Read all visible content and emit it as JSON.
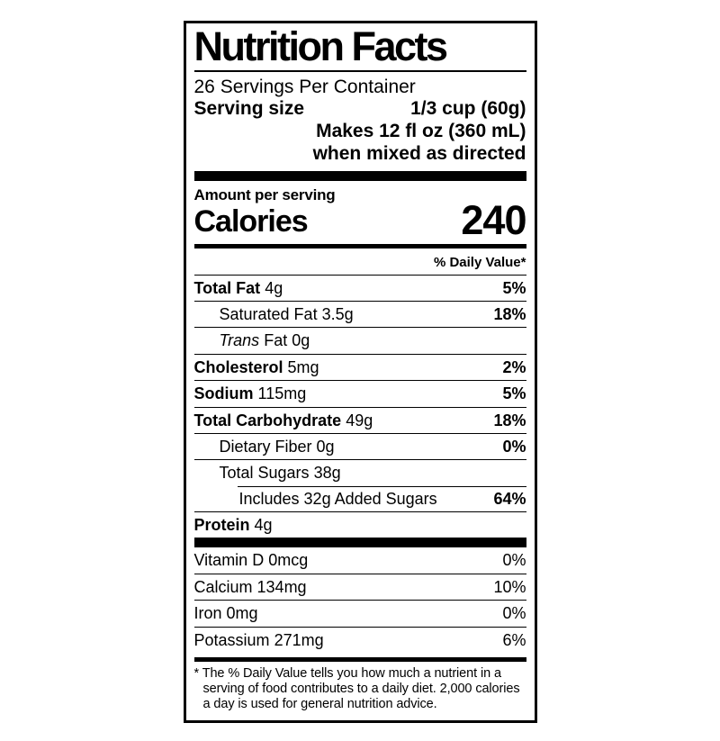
{
  "label": {
    "title": "Nutrition Facts",
    "servings_per_container": "26 Servings Per Container",
    "serving_size_label": "Serving size",
    "serving_size_value": "1/3 cup (60g)",
    "serving_note_line1": "Makes 12 fl oz (360 mL)",
    "serving_note_line2": "when mixed as directed",
    "amount_per_serving": "Amount per serving",
    "calories_label": "Calories",
    "calories_value": "240",
    "daily_value_header": "% Daily Value*",
    "nutrients": [
      {
        "name": "Total Fat",
        "amount": "4g",
        "dv": "5%"
      },
      {
        "name": "Saturated Fat",
        "amount": "3.5g",
        "dv": "18%"
      },
      {
        "name_italic": "Trans",
        "name": "Fat",
        "amount": "0g",
        "dv": ""
      },
      {
        "name": "Cholesterol",
        "amount": "5mg",
        "dv": "2%"
      },
      {
        "name": "Sodium",
        "amount": "115mg",
        "dv": "5%"
      },
      {
        "name": "Total Carbohydrate",
        "amount": "49g",
        "dv": "18%"
      },
      {
        "name": "Dietary Fiber",
        "amount": "0g",
        "dv": "0%"
      },
      {
        "name": "Total Sugars",
        "amount": "38g",
        "dv": ""
      },
      {
        "name": "Includes 32g Added Sugars",
        "amount": "",
        "dv": "64%"
      },
      {
        "name": "Protein",
        "amount": "4g",
        "dv": ""
      }
    ],
    "vitamins": [
      {
        "name": "Vitamin D",
        "amount": "0mcg",
        "dv": "0%"
      },
      {
        "name": "Calcium",
        "amount": "134mg",
        "dv": "10%"
      },
      {
        "name": "Iron",
        "amount": "0mg",
        "dv": "0%"
      },
      {
        "name": "Potassium",
        "amount": "271mg",
        "dv": "6%"
      }
    ],
    "footnote": "* The % Daily Value tells you how much a nutrient in a serving of food contributes to a daily diet. 2,000 calories a day is used for general nutrition advice."
  },
  "colors": {
    "ink": "#000000",
    "background": "#ffffff"
  }
}
